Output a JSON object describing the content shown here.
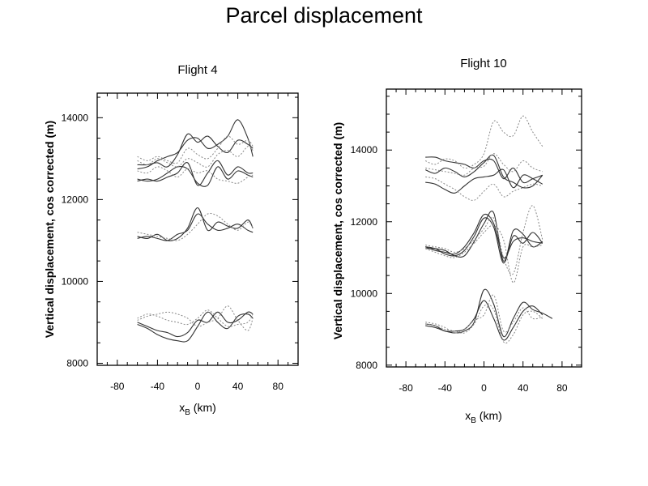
{
  "title": "Parcel displacement",
  "chart_data": [
    {
      "type": "line",
      "title": "Flight 4",
      "xlabel": "x",
      "xlabel_sub": "B",
      "xlabel_unit": " (km)",
      "ylabel": "Vertical displacement, cos corrected (m)",
      "xlim": [
        -100,
        100
      ],
      "ylim": [
        7950,
        14600
      ],
      "xticks": [
        -80,
        -40,
        0,
        40,
        80
      ],
      "yticks": [
        8000,
        10000,
        12000,
        14000
      ],
      "grid": false,
      "series": [
        {
          "style": "solid",
          "x": [
            -60,
            -50,
            -40,
            -30,
            -20,
            -10,
            0,
            10,
            20,
            30,
            40,
            50,
            55
          ],
          "y": [
            12750,
            12800,
            12950,
            13050,
            13150,
            13450,
            13500,
            13250,
            13350,
            13550,
            13950,
            13500,
            13050
          ]
        },
        {
          "style": "solid",
          "x": [
            -60,
            -50,
            -40,
            -30,
            -20,
            -10,
            0,
            10,
            20,
            30,
            40,
            50,
            55
          ],
          "y": [
            12850,
            12850,
            12900,
            12800,
            13100,
            13600,
            13400,
            13550,
            13300,
            13150,
            13450,
            13350,
            13250
          ]
        },
        {
          "style": "solid",
          "x": [
            -60,
            -50,
            -40,
            -30,
            -20,
            -10,
            0,
            10,
            20,
            30,
            40,
            50,
            55
          ],
          "y": [
            12450,
            12500,
            12450,
            12550,
            12650,
            12900,
            12350,
            12650,
            12950,
            12600,
            12800,
            12650,
            12650
          ]
        },
        {
          "style": "solid",
          "x": [
            -60,
            -50,
            -40,
            -30,
            -20,
            -10,
            0,
            10,
            20,
            30,
            40,
            50,
            55
          ],
          "y": [
            12500,
            12450,
            12500,
            12650,
            12800,
            12750,
            12400,
            12350,
            12800,
            12500,
            12700,
            12600,
            12550
          ]
        },
        {
          "style": "dotted",
          "x": [
            -60,
            -50,
            -40,
            -30,
            -20,
            -10,
            0,
            10,
            20,
            30,
            40,
            50,
            55
          ],
          "y": [
            13050,
            12950,
            13050,
            12950,
            12900,
            13250,
            13100,
            13000,
            13250,
            13550,
            13350,
            13450,
            13300
          ]
        },
        {
          "style": "dotted",
          "x": [
            -60,
            -50,
            -40,
            -30,
            -20,
            -10,
            0,
            10,
            20,
            30,
            40,
            50,
            55
          ],
          "y": [
            12950,
            12850,
            13000,
            12900,
            12800,
            13000,
            12900,
            12800,
            13100,
            13200,
            13050,
            13300,
            13200
          ]
        },
        {
          "style": "dotted",
          "x": [
            -60,
            -50,
            -40,
            -30,
            -20,
            -10,
            0,
            10,
            20,
            30,
            40,
            50,
            55
          ],
          "y": [
            12700,
            12650,
            12800,
            12700,
            12550,
            12750,
            12650,
            12700,
            12500,
            12450,
            12400,
            12550,
            12600
          ]
        },
        {
          "style": "solid",
          "x": [
            -60,
            -50,
            -40,
            -30,
            -20,
            -10,
            0,
            10,
            20,
            30,
            40,
            50,
            55
          ],
          "y": [
            11100,
            11050,
            11150,
            11000,
            11050,
            11300,
            11800,
            11250,
            11450,
            11350,
            11300,
            11500,
            11300
          ]
        },
        {
          "style": "solid",
          "x": [
            -60,
            -50,
            -40,
            -30,
            -20,
            -10,
            0,
            10,
            20,
            30,
            40,
            50,
            55
          ],
          "y": [
            11050,
            11100,
            11050,
            11000,
            11150,
            11250,
            11650,
            11400,
            11250,
            11300,
            11400,
            11250,
            11200
          ]
        },
        {
          "style": "dotted",
          "x": [
            -60,
            -50,
            -40,
            -30,
            -20,
            -10,
            0,
            10,
            20,
            30,
            40,
            50,
            55
          ],
          "y": [
            11200,
            11150,
            11100,
            11050,
            11000,
            11150,
            11400,
            11650,
            11600,
            11400,
            11250,
            11450,
            11300
          ]
        },
        {
          "style": "solid",
          "x": [
            -60,
            -50,
            -40,
            -30,
            -20,
            -10,
            0,
            10,
            20,
            30,
            40,
            50,
            55
          ],
          "y": [
            9000,
            8900,
            8800,
            8750,
            8650,
            8750,
            9050,
            9000,
            9250,
            9000,
            9050,
            9250,
            9200
          ]
        },
        {
          "style": "solid",
          "x": [
            -60,
            -50,
            -40,
            -30,
            -20,
            -10,
            0,
            10,
            20,
            30,
            40,
            50,
            55
          ],
          "y": [
            8950,
            8850,
            8700,
            8600,
            8550,
            8550,
            8900,
            9250,
            9000,
            8850,
            9150,
            9200,
            9100
          ]
        },
        {
          "style": "dotted",
          "x": [
            -60,
            -50,
            -40,
            -30,
            -20,
            -10,
            0,
            10,
            20,
            30,
            40,
            50,
            55
          ],
          "y": [
            9050,
            9150,
            9200,
            9250,
            9200,
            9100,
            8900,
            9000,
            9100,
            9400,
            9050,
            8800,
            9100
          ]
        },
        {
          "style": "dotted",
          "x": [
            -60,
            -50,
            -40,
            -30,
            -20,
            -10,
            0,
            10,
            20,
            30,
            40,
            50,
            55
          ],
          "y": [
            9100,
            9200,
            9150,
            9050,
            9000,
            8950,
            9100,
            9300,
            9100,
            8900,
            8950,
            9000,
            9200
          ]
        }
      ]
    },
    {
      "type": "line",
      "title": "Flight 10",
      "xlabel": "x",
      "xlabel_sub": "B",
      "xlabel_unit": " (km)",
      "ylabel": "Vertical displacement, cos corrected (m)",
      "xlim": [
        -100,
        100
      ],
      "ylim": [
        7950,
        15700
      ],
      "xticks": [
        -80,
        -40,
        0,
        40,
        80
      ],
      "yticks": [
        8000,
        10000,
        12000,
        14000
      ],
      "grid": false,
      "series": [
        {
          "style": "solid",
          "x": [
            -60,
            -50,
            -40,
            -30,
            -20,
            -10,
            0,
            10,
            20,
            30,
            40,
            50,
            60
          ],
          "y": [
            13800,
            13800,
            13700,
            13650,
            13600,
            13500,
            13700,
            13700,
            13200,
            13500,
            13100,
            13200,
            13300
          ]
        },
        {
          "style": "solid",
          "x": [
            -60,
            -50,
            -40,
            -30,
            -20,
            -10,
            0,
            10,
            20,
            30,
            40,
            50,
            60
          ],
          "y": [
            13450,
            13350,
            13500,
            13400,
            13250,
            13400,
            13650,
            13850,
            13250,
            13100,
            12950,
            13000,
            13300
          ]
        },
        {
          "style": "solid",
          "x": [
            -60,
            -50,
            -40,
            -30,
            -20,
            -10,
            0,
            10,
            20,
            30,
            40,
            50,
            60
          ],
          "y": [
            13100,
            13050,
            12900,
            12800,
            13000,
            13200,
            13250,
            13300,
            13450,
            12950,
            13300,
            13200,
            13050
          ]
        },
        {
          "style": "dotted",
          "x": [
            -60,
            -50,
            -40,
            -30,
            -20,
            -10,
            0,
            10,
            20,
            30,
            40,
            50,
            60
          ],
          "y": [
            13700,
            13600,
            13750,
            13700,
            13500,
            13600,
            13900,
            14800,
            14500,
            14400,
            14950,
            14500,
            14100
          ]
        },
        {
          "style": "dotted",
          "x": [
            -60,
            -50,
            -40,
            -30,
            -20,
            -10,
            0,
            10,
            20,
            30,
            40,
            50,
            60
          ],
          "y": [
            13500,
            13450,
            13400,
            13350,
            13300,
            13500,
            13550,
            13900,
            13600,
            13400,
            13700,
            13500,
            13400
          ]
        },
        {
          "style": "dotted",
          "x": [
            -60,
            -50,
            -40,
            -30,
            -20,
            -10,
            0,
            10,
            20,
            30,
            40,
            50,
            60
          ],
          "y": [
            13250,
            13200,
            13050,
            12900,
            12700,
            12600,
            12850,
            13050,
            12700,
            12850,
            12950,
            13050,
            13000
          ]
        },
        {
          "style": "solid",
          "x": [
            -60,
            -50,
            -40,
            -30,
            -20,
            -10,
            0,
            10,
            20,
            30,
            40,
            50,
            60
          ],
          "y": [
            11300,
            11250,
            11100,
            11050,
            11200,
            11600,
            12100,
            11850,
            10850,
            11600,
            11400,
            11700,
            11400
          ]
        },
        {
          "style": "solid",
          "x": [
            -60,
            -50,
            -40,
            -30,
            -20,
            -10,
            0,
            10,
            20,
            30,
            40,
            50,
            60
          ],
          "y": [
            11300,
            11200,
            11150,
            11100,
            11300,
            11700,
            12200,
            11950,
            11000,
            11450,
            11550,
            11450,
            11400
          ]
        },
        {
          "style": "solid",
          "x": [
            -60,
            -50,
            -40,
            -30,
            -20,
            -10,
            0,
            10,
            20,
            30,
            40,
            50,
            60
          ],
          "y": [
            11250,
            11250,
            11200,
            11050,
            11050,
            11450,
            11950,
            12250,
            10900,
            11750,
            11650,
            11300,
            11450
          ]
        },
        {
          "style": "dotted",
          "x": [
            -60,
            -50,
            -40,
            -30,
            -20,
            -10,
            0,
            10,
            20,
            30,
            40,
            50,
            60
          ],
          "y": [
            11350,
            11300,
            11250,
            11150,
            11250,
            11500,
            11800,
            12100,
            11000,
            10550,
            11700,
            12450,
            11500
          ]
        },
        {
          "style": "dotted",
          "x": [
            -60,
            -50,
            -40,
            -30,
            -20,
            -10,
            0,
            10,
            20,
            30,
            40,
            50,
            60
          ],
          "y": [
            11250,
            11150,
            11050,
            11000,
            11150,
            11400,
            11700,
            11900,
            11500,
            10300,
            11300,
            11300,
            11350
          ]
        },
        {
          "style": "solid",
          "x": [
            -60,
            -50,
            -40,
            -30,
            -20,
            -10,
            0,
            10,
            20,
            30,
            40,
            50,
            60,
            70
          ],
          "y": [
            9100,
            9050,
            8950,
            8900,
            8950,
            9200,
            10100,
            9700,
            8800,
            9300,
            9750,
            9550,
            9450,
            9300
          ]
        },
        {
          "style": "solid",
          "x": [
            -60,
            -50,
            -40,
            -30,
            -20,
            -10,
            0,
            10,
            20,
            30,
            40,
            50,
            60
          ],
          "y": [
            9150,
            9100,
            8950,
            8950,
            9000,
            9300,
            9800,
            9300,
            8700,
            9050,
            9500,
            9650,
            9400
          ]
        },
        {
          "style": "dotted",
          "x": [
            -60,
            -50,
            -40,
            -30,
            -20,
            -10,
            0,
            10,
            20,
            30,
            40,
            50,
            60
          ],
          "y": [
            9200,
            9150,
            9050,
            8900,
            9000,
            9250,
            9400,
            9950,
            8950,
            9200,
            9600,
            9300,
            9350
          ]
        },
        {
          "style": "dotted",
          "x": [
            -60,
            -50,
            -40,
            -30,
            -20,
            -10,
            0,
            10,
            20,
            30,
            40,
            50,
            60
          ],
          "y": [
            9150,
            9100,
            9000,
            8950,
            8900,
            9150,
            9650,
            9550,
            8650,
            8850,
            9400,
            9500,
            9300
          ]
        }
      ]
    }
  ]
}
